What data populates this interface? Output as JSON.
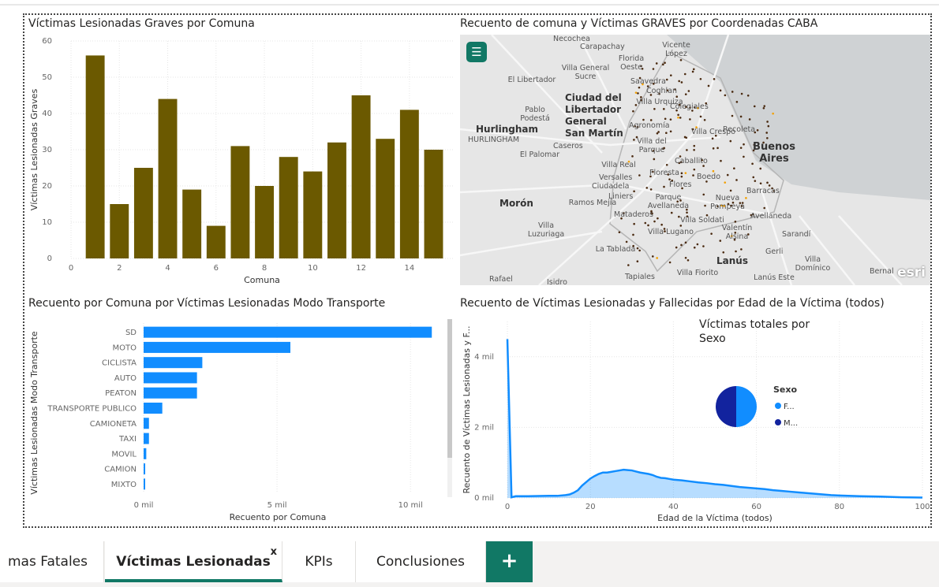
{
  "visuals": {
    "bar_comuna_title": "Víctimas Lesionadas Graves por Comuna",
    "map_title": "Recuento de comuna y Víctimas GRAVES por Coordenadas CABA",
    "hbar_title": "Recuento por Comuna por Víctimas Lesionadas Modo Transporte",
    "line_title": "Recuento de Víctimas Lesionadas y Fallecidas por Edad de la Víctima (todos)",
    "pie_title": "Víctimas totales por Sexo"
  },
  "map": {
    "menu_icon": "hamburger-menu-icon",
    "attribution": "esri",
    "labels": [
      {
        "text": "Necochea",
        "big": false
      },
      {
        "text": "Carapachay",
        "big": false
      },
      {
        "text": "Vicente López",
        "big": false
      },
      {
        "text": "Florida Oeste",
        "big": false
      },
      {
        "text": "Villa General Sucre",
        "big": false
      },
      {
        "text": "El Libertador",
        "big": false
      },
      {
        "text": "Saavedra",
        "big": false
      },
      {
        "text": "Coghlan",
        "big": false
      },
      {
        "text": "Ciudad del Libertador General San Martín",
        "big": true
      },
      {
        "text": "Pablo Podestá",
        "big": false
      },
      {
        "text": "Hurlingham",
        "big": true
      },
      {
        "text": "Villa Urquiza",
        "big": false
      },
      {
        "text": "Colegiales",
        "big": false
      },
      {
        "text": "Agronomía",
        "big": false
      },
      {
        "text": "Recoleta",
        "big": false
      },
      {
        "text": "Villa Crespo",
        "big": false
      },
      {
        "text": "Buenos Aires",
        "big": true
      },
      {
        "text": "Caseros",
        "big": false
      },
      {
        "text": "El Palomar",
        "big": false
      },
      {
        "text": "Villa del Parque",
        "big": false
      },
      {
        "text": "Villa Real",
        "big": false
      },
      {
        "text": "Caballito",
        "big": false
      },
      {
        "text": "Versalles",
        "big": false
      },
      {
        "text": "Floresta",
        "big": false
      },
      {
        "text": "Boedo",
        "big": false
      },
      {
        "text": "Ciudadela",
        "big": false
      },
      {
        "text": "Flores",
        "big": false
      },
      {
        "text": "Liniers",
        "big": false
      },
      {
        "text": "Barracas",
        "big": false
      },
      {
        "text": "Morón",
        "big": true
      },
      {
        "text": "Ramos Mejía",
        "big": false
      },
      {
        "text": "Parque Avellaneda",
        "big": false
      },
      {
        "text": "Nueva Pompeya",
        "big": false
      },
      {
        "text": "Avellaneda",
        "big": false
      },
      {
        "text": "Mataderos",
        "big": false
      },
      {
        "text": "Villa Soldati",
        "big": false
      },
      {
        "text": "Villa Luzuriaga",
        "big": false
      },
      {
        "text": "Villa Lugano",
        "big": false
      },
      {
        "text": "Valentín Alsina",
        "big": false
      },
      {
        "text": "Sarandí",
        "big": false
      },
      {
        "text": "La Tablada",
        "big": false
      },
      {
        "text": "Gerli",
        "big": false
      },
      {
        "text": "Lanús",
        "big": true
      },
      {
        "text": "Villa Domínico",
        "big": false
      },
      {
        "text": "Rafael",
        "big": false
      },
      {
        "text": "Isidro",
        "big": false
      },
      {
        "text": "Tapiales",
        "big": false
      },
      {
        "text": "Villa Fiorito",
        "big": false
      },
      {
        "text": "Lanús Este",
        "big": false
      },
      {
        "text": "Bernal",
        "big": false
      },
      {
        "text": "HURLINGHAM",
        "big": false
      }
    ]
  },
  "tabs": {
    "items": [
      {
        "label": "mas Fatales"
      },
      {
        "label": "Víctimas Lesionadas",
        "close": "x"
      },
      {
        "label": "KPIs"
      },
      {
        "label": "Conclusiones"
      }
    ],
    "add_label": "+"
  },
  "colors": {
    "bar": "#6b5900",
    "hbar": "#118dff",
    "line": "#118dff",
    "pie_f": "#118dff",
    "pie_m": "#12239e",
    "accent": "#117865"
  },
  "chart_data": [
    {
      "type": "bar",
      "title": "Víctimas Lesionadas Graves por Comuna",
      "xlabel": "Comuna",
      "ylabel": "Víctimas Lesionadas Graves",
      "x": [
        1,
        2,
        3,
        4,
        5,
        6,
        7,
        8,
        9,
        10,
        11,
        12,
        13,
        14,
        15
      ],
      "values": [
        56,
        15,
        25,
        44,
        19,
        9,
        31,
        20,
        28,
        24,
        32,
        45,
        33,
        41,
        30
      ],
      "xlim": [
        0,
        15.8
      ],
      "ylim": [
        0,
        60
      ],
      "xticks": [
        "0",
        "2",
        "4",
        "6",
        "8",
        "10",
        "12",
        "14"
      ],
      "yticks": [
        "0",
        "10",
        "20",
        "30",
        "40",
        "50",
        "60"
      ],
      "grid": true
    },
    {
      "type": "bar",
      "orientation": "horizontal",
      "title": "Recuento por Comuna por Víctimas Lesionadas Modo Transporte",
      "xlabel": "Recuento por Comuna",
      "ylabel": "Víctimas Lesionadas Modo Transporte",
      "categories": [
        "SD",
        "MOTO",
        "CICLISTA",
        "AUTO",
        "PEATON",
        "TRANSPORTE PUBLICO",
        "CAMIONETA",
        "TAXI",
        "MOVIL",
        "CAMION",
        "MIXTO"
      ],
      "values": [
        10.8,
        5.5,
        2.2,
        2.0,
        2.0,
        0.7,
        0.2,
        0.2,
        0.1,
        0.06,
        0.03
      ],
      "unit": "mil",
      "xlim": [
        0,
        11
      ],
      "xticks": [
        "0 mil",
        "5 mil",
        "10 mil"
      ],
      "grid": true
    },
    {
      "type": "area",
      "title": "Recuento de Víctimas Lesionadas y Fallecidas por Edad de la Víctima (todos)",
      "xlabel": "Edad de la Víctima (todos)",
      "ylabel": "Recuento de Víctimas Lesionadas y F...",
      "x": [
        0,
        1,
        2,
        5,
        10,
        12,
        14,
        15,
        16,
        17,
        18,
        19,
        20,
        21,
        22,
        23,
        24,
        25,
        26,
        27,
        28,
        29,
        30,
        31,
        32,
        33,
        34,
        35,
        36,
        37,
        38,
        39,
        40,
        42,
        44,
        46,
        48,
        50,
        52,
        54,
        56,
        58,
        60,
        62,
        64,
        66,
        68,
        70,
        72,
        74,
        76,
        78,
        80,
        85,
        90,
        95,
        100
      ],
      "values": [
        4.5,
        0.02,
        0.05,
        0.05,
        0.06,
        0.06,
        0.08,
        0.1,
        0.15,
        0.22,
        0.35,
        0.45,
        0.55,
        0.62,
        0.68,
        0.72,
        0.72,
        0.74,
        0.76,
        0.78,
        0.8,
        0.79,
        0.78,
        0.75,
        0.72,
        0.7,
        0.68,
        0.65,
        0.6,
        0.57,
        0.56,
        0.54,
        0.52,
        0.5,
        0.47,
        0.44,
        0.42,
        0.39,
        0.37,
        0.34,
        0.31,
        0.29,
        0.27,
        0.25,
        0.22,
        0.2,
        0.18,
        0.16,
        0.14,
        0.12,
        0.1,
        0.08,
        0.07,
        0.05,
        0.04,
        0.02,
        0.01
      ],
      "unit": "mil",
      "xlim": [
        0,
        100
      ],
      "ylim": [
        0,
        5
      ],
      "xticks": [
        "0",
        "20",
        "40",
        "60",
        "80",
        "100"
      ],
      "yticks": [
        "0 mil",
        "2 mil",
        "4 mil"
      ],
      "grid": true
    },
    {
      "type": "pie",
      "title": "Víctimas totales por Sexo",
      "legend_title": "Sexo",
      "categories": [
        "F...",
        "M..."
      ],
      "values": [
        50,
        50
      ],
      "legend": "right"
    }
  ]
}
